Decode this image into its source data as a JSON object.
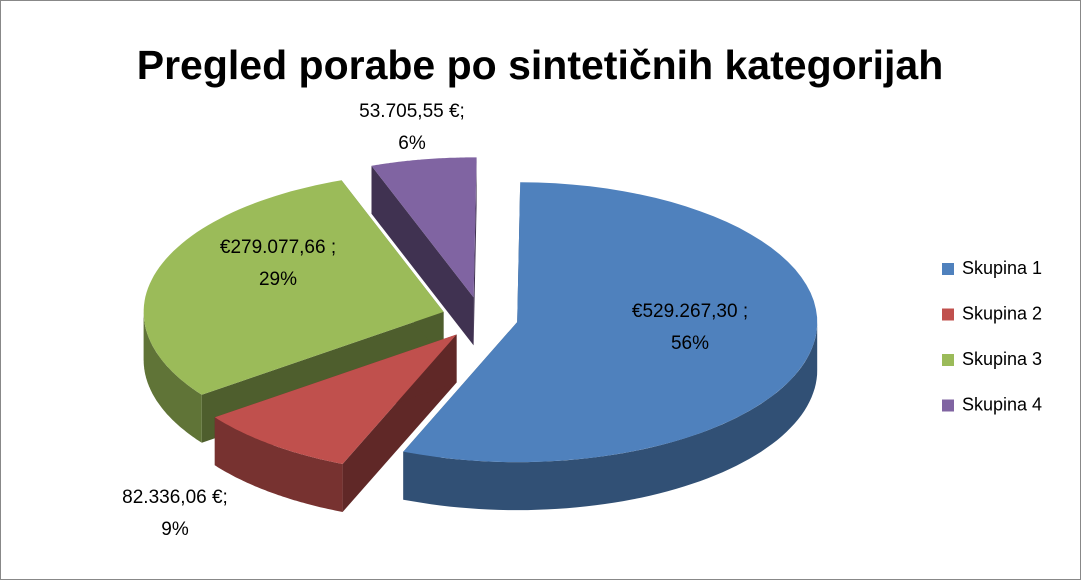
{
  "chart_data": {
    "type": "pie",
    "title": "Pregled porabe po sintetičnih kategorijah",
    "categories": [
      "Skupina 1",
      "Skupina 2",
      "Skupina 3",
      "Skupina 4"
    ],
    "values": [
      529267.3,
      82336.06,
      279077.66,
      53705.55
    ],
    "value_labels": [
      [
        "€529.267,30 ;",
        "56%"
      ],
      [
        "82.336,06 €;",
        "9%"
      ],
      [
        "€279.077,66 ;",
        "29%"
      ],
      [
        "53.705,55 €;",
        "6%"
      ]
    ],
    "colors": [
      "#4f81bd",
      "#c0504d",
      "#9bbb59",
      "#8064a2"
    ],
    "legend": "right",
    "exploded": true,
    "three_d": true
  }
}
